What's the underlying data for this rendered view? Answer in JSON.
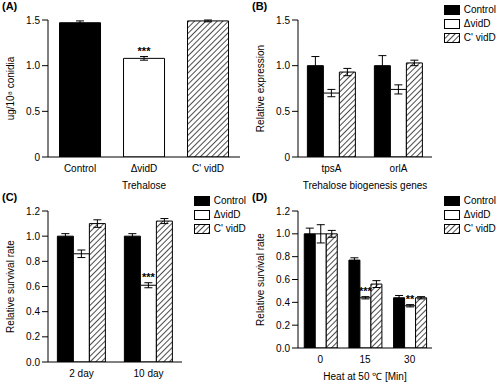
{
  "chart_data": [
    {
      "type": "bar",
      "title": "(A)",
      "x_label": "Trehalose",
      "y_label": "ug/10⁸ conidia",
      "categories": [
        "Control",
        "ΔvidD",
        "C' vidD"
      ],
      "values": [
        1.47,
        1.08,
        1.49
      ],
      "errors": [
        0.02,
        0.02,
        0.01
      ],
      "colors": [
        "#000000",
        "#ffffff",
        "#000000"
      ],
      "ylim": [
        0,
        1.5
      ],
      "yticks": [
        0,
        0.5,
        {
          "value": 1,
          "label": "1.0"
        },
        1.5
      ],
      "grid": false,
      "annotations": [
        {
          "text": "***",
          "category": "ΔvidD"
        }
      ]
    },
    {
      "type": "bar",
      "title": "(B)",
      "x_label": "Trehalose biogenesis genes",
      "y_label": "Relative expression",
      "categories": [
        "tpsA",
        "orlA"
      ],
      "series": [
        {
          "name": "Control",
          "color": "#000000",
          "values": [
            1.0,
            1.0
          ],
          "errors": [
            0.1,
            0.11
          ]
        },
        {
          "name": "ΔvidD",
          "color": "#ffffff",
          "values": [
            0.7,
            0.74
          ],
          "errors": [
            0.04,
            0.05
          ]
        },
        {
          "name": "C' vidD",
          "color": "#000000",
          "values": [
            0.93,
            1.03
          ],
          "errors": [
            0.04,
            0.03
          ]
        }
      ],
      "ylim": [
        0,
        1.5
      ],
      "yticks": [
        0,
        0.5,
        {
          "value": 1,
          "label": "1.0"
        },
        1.5
      ],
      "grid": false,
      "legend": "top-right",
      "annotations": []
    },
    {
      "type": "bar",
      "title": "(C)",
      "y_label": "Relative survival rate",
      "categories": [
        "2 day",
        "10 day"
      ],
      "series": [
        {
          "name": "Control",
          "color": "#000000",
          "values": [
            1.0,
            1.0
          ],
          "errors": [
            0.02,
            0.02
          ]
        },
        {
          "name": "ΔvidD",
          "color": "#ffffff",
          "values": [
            0.86,
            0.61
          ],
          "errors": [
            0.03,
            0.02
          ]
        },
        {
          "name": "C' vidD",
          "color": "#000000",
          "values": [
            1.1,
            1.12
          ],
          "errors": [
            0.03,
            0.02
          ]
        }
      ],
      "ylim": [
        0,
        1.2
      ],
      "yticks": [
        {
          "value": 0,
          "label": "0.0"
        },
        0.2,
        0.4,
        0.6,
        0.8,
        {
          "value": 1,
          "label": "1.0"
        },
        1.2
      ],
      "grid": false,
      "legend": "top-right",
      "annotations": [
        {
          "text": "***",
          "series": "ΔvidD",
          "category": "10 day"
        }
      ]
    },
    {
      "type": "bar",
      "title": "(D)",
      "x_label": "Heat at 50 ℃ [Min]",
      "y_label": "Relative survival rate",
      "categories": [
        "0",
        "15",
        "30"
      ],
      "series": [
        {
          "name": "Control",
          "color": "#000000",
          "values": [
            1.0,
            0.77,
            0.44
          ],
          "errors": [
            0.05,
            0.02,
            0.02
          ]
        },
        {
          "name": "ΔvidD",
          "color": "#ffffff",
          "values": [
            1.0,
            0.44,
            0.37
          ],
          "errors": [
            0.08,
            0.01,
            0.01
          ]
        },
        {
          "name": "C' vidD",
          "color": "#000000",
          "values": [
            1.0,
            0.56,
            0.44
          ],
          "errors": [
            0.03,
            0.03,
            0.01
          ]
        }
      ],
      "ylim": [
        0,
        1.2
      ],
      "yticks": [
        {
          "value": 0,
          "label": "0.0"
        },
        0.2,
        0.4,
        0.6,
        0.8,
        {
          "value": 1,
          "label": "1.0"
        },
        1.2
      ],
      "grid": false,
      "legend": "top-right",
      "annotations": [
        {
          "text": "***",
          "series": "ΔvidD",
          "category": "15"
        },
        {
          "text": "**",
          "series": "ΔvidD",
          "category": "30"
        }
      ]
    }
  ]
}
